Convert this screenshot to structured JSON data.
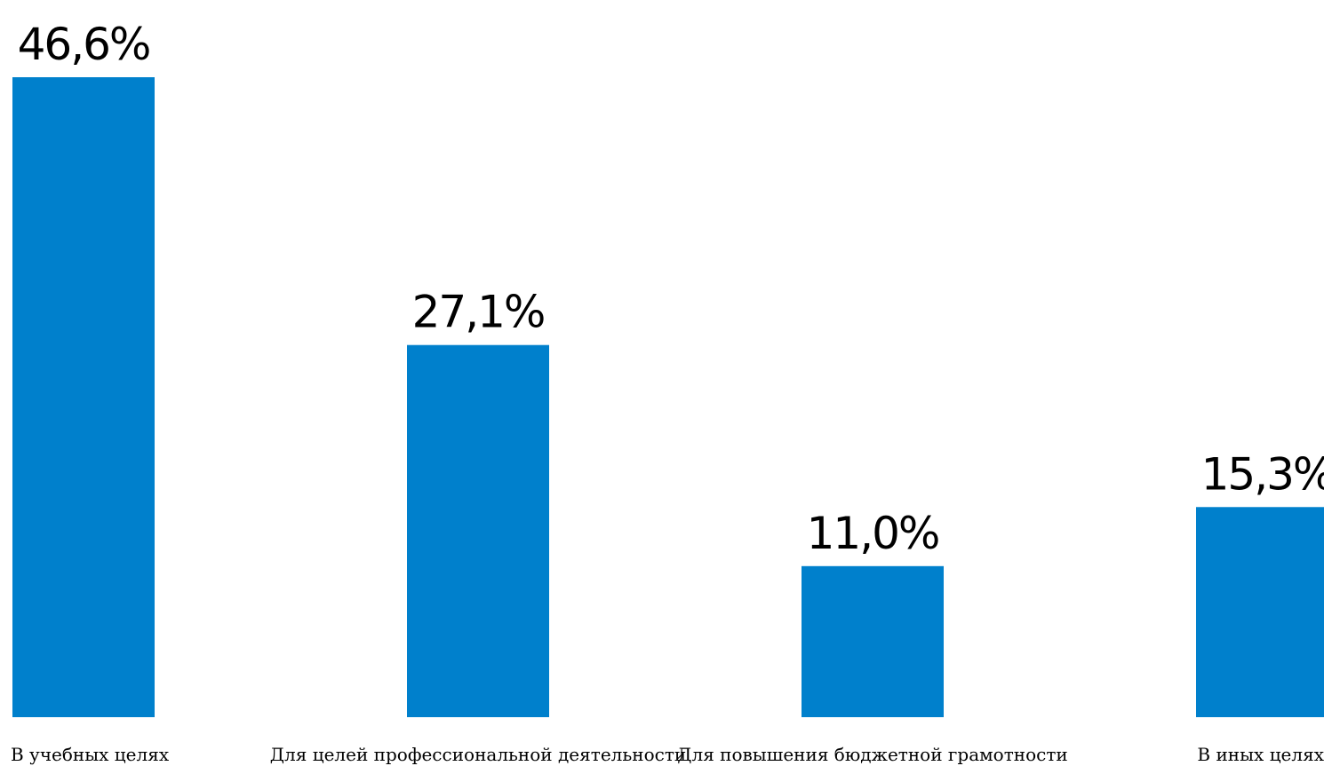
{
  "chart_data": {
    "type": "bar",
    "categories": [
      "В учебных целях",
      "Для целей профессиональной деятельности",
      "Для повышения бюджетной грамотности",
      "В иных целях"
    ],
    "values": [
      46.6,
      27.1,
      11.0,
      15.3
    ],
    "data_labels": [
      "46,6%",
      "27,1%",
      "11,0%",
      "15,3%"
    ],
    "unit": "%",
    "bar_color": "#0080CC",
    "title": "",
    "xlabel": "",
    "ylabel": "",
    "ylim": [
      0,
      46.6
    ],
    "grid": false,
    "legend": "none"
  }
}
